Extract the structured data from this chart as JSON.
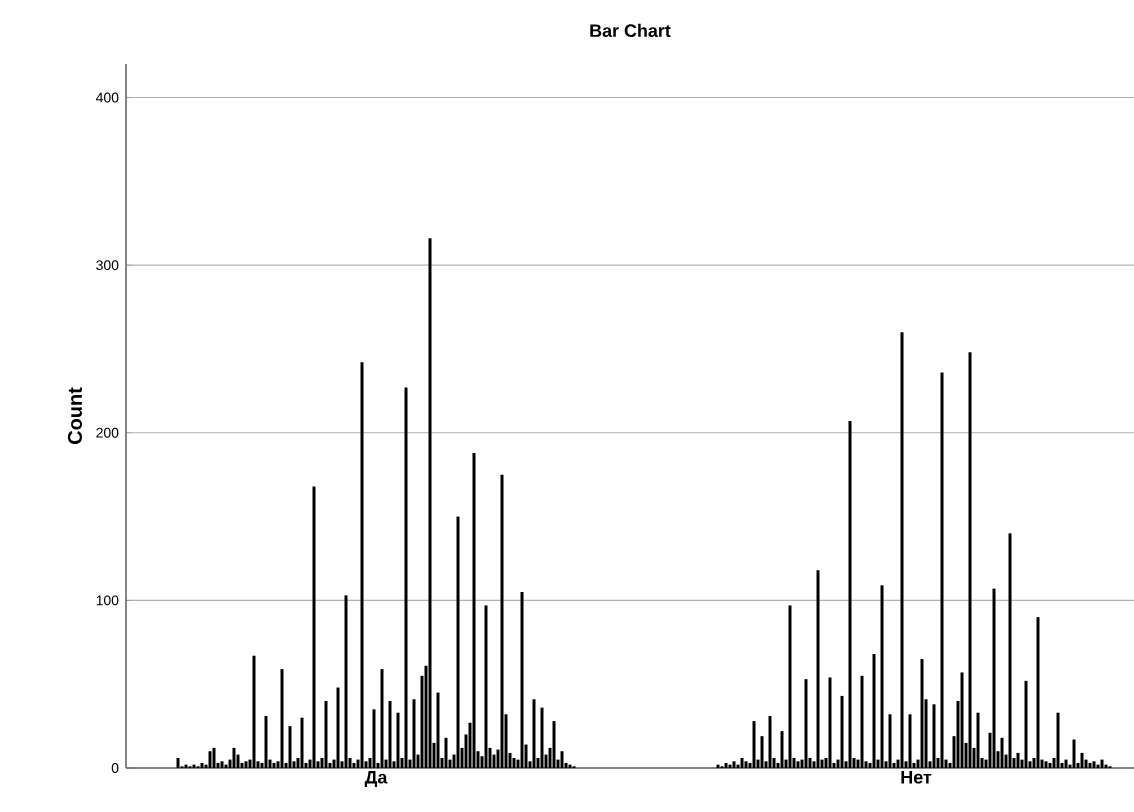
{
  "chart_data": {
    "type": "bar",
    "title": "Bar Chart",
    "ylabel": "Count",
    "categories": [
      "Да",
      "Нет"
    ],
    "color": "#000000",
    "ylim": [
      0,
      420
    ],
    "yticks": [
      0,
      100,
      200,
      300,
      400
    ],
    "grid": "y",
    "series": [
      {
        "values": [
          6,
          2
        ]
      },
      {
        "values": [
          1,
          1
        ]
      },
      {
        "values": [
          2,
          3
        ]
      },
      {
        "values": [
          1,
          2
        ]
      },
      {
        "values": [
          2,
          4
        ]
      },
      {
        "values": [
          1,
          2
        ]
      },
      {
        "values": [
          3,
          6
        ]
      },
      {
        "values": [
          2,
          4
        ]
      },
      {
        "values": [
          10,
          3
        ]
      },
      {
        "values": [
          12,
          28
        ]
      },
      {
        "values": [
          3,
          5
        ]
      },
      {
        "values": [
          4,
          19
        ]
      },
      {
        "values": [
          2,
          4
        ]
      },
      {
        "values": [
          5,
          31
        ]
      },
      {
        "values": [
          12,
          6
        ]
      },
      {
        "values": [
          8,
          3
        ]
      },
      {
        "values": [
          3,
          22
        ]
      },
      {
        "values": [
          4,
          5
        ]
      },
      {
        "values": [
          5,
          97
        ]
      },
      {
        "values": [
          67,
          6
        ]
      },
      {
        "values": [
          4,
          4
        ]
      },
      {
        "values": [
          3,
          5
        ]
      },
      {
        "values": [
          31,
          53
        ]
      },
      {
        "values": [
          5,
          6
        ]
      },
      {
        "values": [
          3,
          4
        ]
      },
      {
        "values": [
          4,
          118
        ]
      },
      {
        "values": [
          59,
          5
        ]
      },
      {
        "values": [
          3,
          6
        ]
      },
      {
        "values": [
          25,
          54
        ]
      },
      {
        "values": [
          4,
          3
        ]
      },
      {
        "values": [
          6,
          5
        ]
      },
      {
        "values": [
          30,
          43
        ]
      },
      {
        "values": [
          3,
          4
        ]
      },
      {
        "values": [
          5,
          207
        ]
      },
      {
        "values": [
          168,
          6
        ]
      },
      {
        "values": [
          4,
          5
        ]
      },
      {
        "values": [
          6,
          55
        ]
      },
      {
        "values": [
          40,
          4
        ]
      },
      {
        "values": [
          3,
          3
        ]
      },
      {
        "values": [
          5,
          68
        ]
      },
      {
        "values": [
          48,
          5
        ]
      },
      {
        "values": [
          4,
          109
        ]
      },
      {
        "values": [
          103,
          4
        ]
      },
      {
        "values": [
          6,
          32
        ]
      },
      {
        "values": [
          3,
          3
        ]
      },
      {
        "values": [
          5,
          5
        ]
      },
      {
        "values": [
          242,
          260
        ]
      },
      {
        "values": [
          4,
          4
        ]
      },
      {
        "values": [
          6,
          32
        ]
      },
      {
        "values": [
          35,
          3
        ]
      },
      {
        "values": [
          3,
          5
        ]
      },
      {
        "values": [
          59,
          65
        ]
      },
      {
        "values": [
          5,
          41
        ]
      },
      {
        "values": [
          40,
          4
        ]
      },
      {
        "values": [
          4,
          38
        ]
      },
      {
        "values": [
          33,
          6
        ]
      },
      {
        "values": [
          6,
          236
        ]
      },
      {
        "values": [
          227,
          5
        ]
      },
      {
        "values": [
          5,
          3
        ]
      },
      {
        "values": [
          41,
          19
        ]
      },
      {
        "values": [
          8,
          40
        ]
      },
      {
        "values": [
          55,
          57
        ]
      },
      {
        "values": [
          61,
          15
        ]
      },
      {
        "values": [
          316,
          248
        ]
      },
      {
        "values": [
          15,
          12
        ]
      },
      {
        "values": [
          45,
          33
        ]
      },
      {
        "values": [
          6,
          6
        ]
      },
      {
        "values": [
          18,
          5
        ]
      },
      {
        "values": [
          5,
          21
        ]
      },
      {
        "values": [
          8,
          107
        ]
      },
      {
        "values": [
          150,
          10
        ]
      },
      {
        "values": [
          12,
          18
        ]
      },
      {
        "values": [
          20,
          8
        ]
      },
      {
        "values": [
          27,
          140
        ]
      },
      {
        "values": [
          188,
          6
        ]
      },
      {
        "values": [
          10,
          9
        ]
      },
      {
        "values": [
          7,
          5
        ]
      },
      {
        "values": [
          97,
          52
        ]
      },
      {
        "values": [
          12,
          4
        ]
      },
      {
        "values": [
          8,
          6
        ]
      },
      {
        "values": [
          11,
          90
        ]
      },
      {
        "values": [
          175,
          5
        ]
      },
      {
        "values": [
          32,
          4
        ]
      },
      {
        "values": [
          9,
          3
        ]
      },
      {
        "values": [
          6,
          6
        ]
      },
      {
        "values": [
          5,
          33
        ]
      },
      {
        "values": [
          105,
          3
        ]
      },
      {
        "values": [
          14,
          5
        ]
      },
      {
        "values": [
          4,
          2
        ]
      },
      {
        "values": [
          41,
          17
        ]
      },
      {
        "values": [
          6,
          3
        ]
      },
      {
        "values": [
          36,
          9
        ]
      },
      {
        "values": [
          8,
          5
        ]
      },
      {
        "values": [
          12,
          3
        ]
      },
      {
        "values": [
          28,
          4
        ]
      },
      {
        "values": [
          5,
          2
        ]
      },
      {
        "values": [
          10,
          5
        ]
      },
      {
        "values": [
          3,
          2
        ]
      },
      {
        "values": [
          2,
          1
        ]
      },
      {
        "values": [
          1,
          0
        ]
      }
    ]
  }
}
